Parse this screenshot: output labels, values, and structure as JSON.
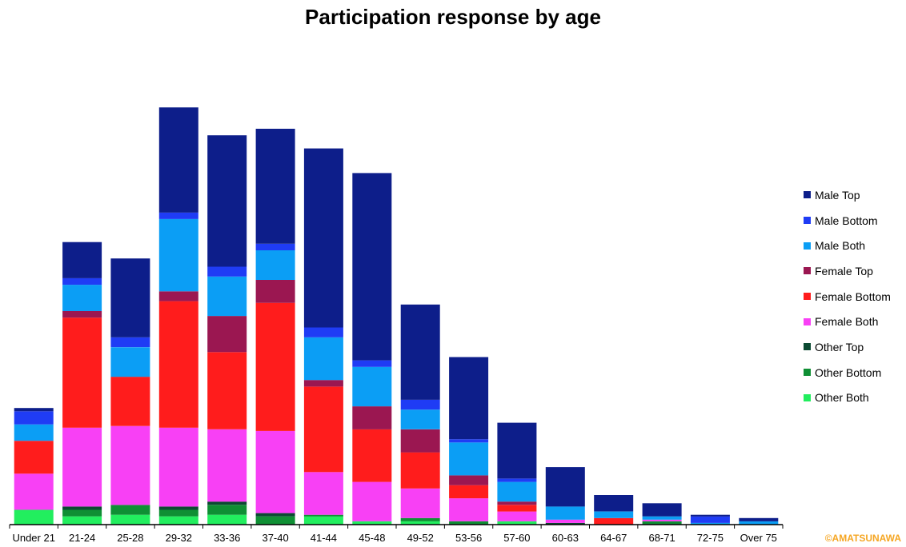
{
  "chart_data": {
    "type": "bar",
    "stacked": true,
    "title": "Participation response by age",
    "xlabel": "",
    "ylabel": "",
    "ylim": [
      0,
      1480
    ],
    "grid": false,
    "legend_position": "right",
    "categories": [
      "Under 21",
      "21-24",
      "25-28",
      "29-32",
      "33-36",
      "37-40",
      "41-44",
      "45-48",
      "49-52",
      "53-56",
      "57-60",
      "60-63",
      "64-67",
      "68-71",
      "72-75",
      "Over 75"
    ],
    "series": [
      {
        "name": "Other Both",
        "color": "#22ee5e",
        "values": [
          45,
          25,
          30,
          25,
          30,
          0,
          25,
          10,
          10,
          0,
          10,
          0,
          0,
          0,
          0,
          0
        ]
      },
      {
        "name": "Other Bottom",
        "color": "#0f8f34",
        "values": [
          0,
          20,
          30,
          20,
          30,
          25,
          5,
          0,
          10,
          10,
          0,
          0,
          0,
          10,
          0,
          0
        ]
      },
      {
        "name": "Other Top",
        "color": "#0b4a32",
        "values": [
          0,
          10,
          0,
          10,
          10,
          10,
          0,
          0,
          0,
          0,
          0,
          5,
          0,
          0,
          0,
          0
        ]
      },
      {
        "name": "Female Both",
        "color": "#f840f5",
        "values": [
          110,
          240,
          240,
          240,
          220,
          250,
          130,
          120,
          90,
          70,
          30,
          10,
          0,
          5,
          0,
          0
        ]
      },
      {
        "name": "Female Bottom",
        "color": "#ff1c1c",
        "values": [
          100,
          335,
          150,
          385,
          235,
          390,
          260,
          160,
          110,
          40,
          20,
          0,
          20,
          0,
          0,
          0
        ]
      },
      {
        "name": "Female Top",
        "color": "#9b1751",
        "values": [
          0,
          20,
          0,
          30,
          110,
          70,
          20,
          70,
          70,
          30,
          10,
          0,
          0,
          0,
          0,
          0
        ]
      },
      {
        "name": "Male Both",
        "color": "#0b9ef5",
        "values": [
          50,
          80,
          90,
          220,
          120,
          90,
          130,
          120,
          60,
          100,
          60,
          40,
          20,
          10,
          5,
          10
        ]
      },
      {
        "name": "Male Bottom",
        "color": "#1f3cf5",
        "values": [
          40,
          20,
          30,
          20,
          30,
          20,
          30,
          20,
          30,
          10,
          10,
          0,
          0,
          0,
          20,
          0
        ]
      },
      {
        "name": "Male Top",
        "color": "#0d1e8a",
        "values": [
          10,
          110,
          240,
          320,
          400,
          350,
          545,
          570,
          290,
          250,
          170,
          120,
          50,
          40,
          5,
          10
        ]
      }
    ],
    "legend_order": [
      "Male Top",
      "Male Bottom",
      "Male Both",
      "Female Top",
      "Female Bottom",
      "Female Both",
      "Other Top",
      "Other Bottom",
      "Other Both"
    ]
  },
  "credit": "©AMATSUNAWA"
}
